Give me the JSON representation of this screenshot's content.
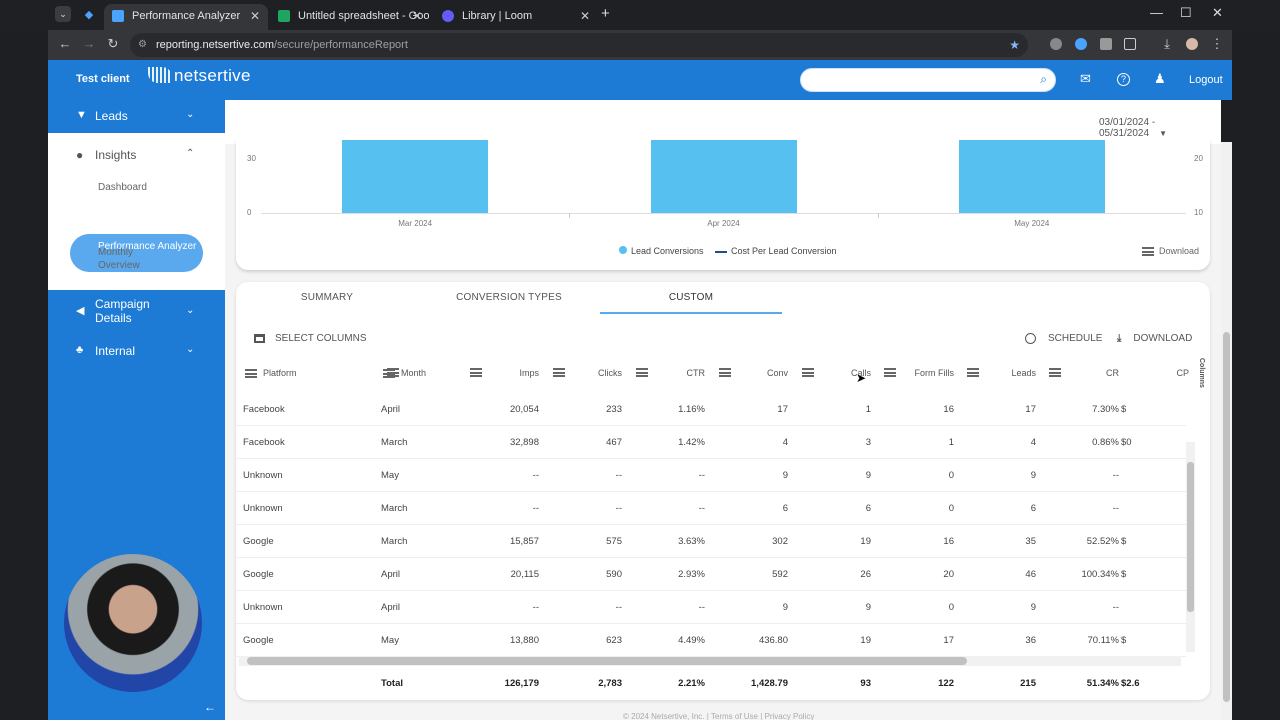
{
  "browser": {
    "tabs": [
      {
        "title": "Performance Analyzer",
        "fav_color": "#4aa3ff"
      },
      {
        "title": "Untitled spreadsheet - Google",
        "fav_color": "#1fa463"
      },
      {
        "title": "Library | Loom",
        "fav_color": "#625df5"
      }
    ],
    "url_host": "reporting.netsertive.com",
    "url_path": "/secure/performanceReport"
  },
  "header": {
    "client": "Test client",
    "logo": "netsertive",
    "logout": "Logout"
  },
  "sidebar": {
    "leads": "Leads",
    "insights": "Insights",
    "sub_items": [
      "Dashboard",
      "Performance Analyzer",
      "Monthly Overview"
    ],
    "campaign": "Campaign Details",
    "internal": "Internal"
  },
  "date_range": "03/01/2024 - 05/31/2024",
  "chart_data": {
    "type": "bar",
    "categories": [
      "Mar 2024",
      "Apr 2024",
      "May 2024"
    ],
    "y_left_ticks": [
      "30",
      "0"
    ],
    "y_right_ticks": [
      "20",
      "10"
    ],
    "series": [
      {
        "name": "Lead Conversions",
        "color": "#56c1f0"
      },
      {
        "name": "Cost Per Lead Conversion",
        "color": "#1f4e8c"
      }
    ],
    "download": "Download"
  },
  "table_tabs": [
    "SUMMARY",
    "CONVERSION TYPES",
    "CUSTOM"
  ],
  "actions": {
    "select_columns": "SELECT COLUMNS",
    "schedule": "SCHEDULE",
    "download": "DOWNLOAD"
  },
  "columns_panel": "Columns",
  "table": {
    "headers": [
      "Platform",
      "Month",
      "Imps",
      "Clicks",
      "CTR",
      "Conv",
      "Calls",
      "Form Fills",
      "Leads",
      "CR",
      "CP"
    ],
    "rows": [
      [
        "Facebook",
        "April",
        "20,054",
        "233",
        "1.16%",
        "17",
        "1",
        "16",
        "17",
        "7.30%",
        "$"
      ],
      [
        "Facebook",
        "March",
        "32,898",
        "467",
        "1.42%",
        "4",
        "3",
        "1",
        "4",
        "0.86%",
        "$0"
      ],
      [
        "Unknown",
        "May",
        "--",
        "--",
        "--",
        "9",
        "9",
        "0",
        "9",
        "--",
        ""
      ],
      [
        "Unknown",
        "March",
        "--",
        "--",
        "--",
        "6",
        "6",
        "0",
        "6",
        "--",
        ""
      ],
      [
        "Google",
        "March",
        "15,857",
        "575",
        "3.63%",
        "302",
        "19",
        "16",
        "35",
        "52.52%",
        "$"
      ],
      [
        "Google",
        "April",
        "20,115",
        "590",
        "2.93%",
        "592",
        "26",
        "20",
        "46",
        "100.34%",
        "$"
      ],
      [
        "Unknown",
        "April",
        "--",
        "--",
        "--",
        "9",
        "9",
        "0",
        "9",
        "--",
        ""
      ],
      [
        "Google",
        "May",
        "13,880",
        "623",
        "4.49%",
        "436.80",
        "19",
        "17",
        "36",
        "70.11%",
        "$"
      ]
    ],
    "total": [
      "",
      "Total",
      "126,179",
      "2,783",
      "2.21%",
      "1,428.79",
      "93",
      "122",
      "215",
      "51.34%",
      "$2.6"
    ]
  },
  "footer": {
    "copyright": "© 2024 Netsertive, Inc. |",
    "terms": "Terms of Use",
    "privacy": "Privacy Policy"
  }
}
